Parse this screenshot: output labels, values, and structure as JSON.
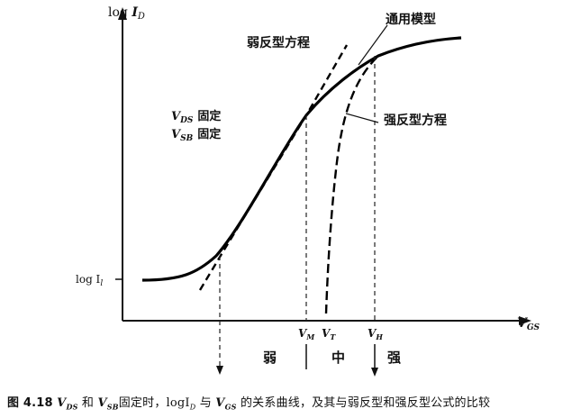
{
  "axes": {
    "y_label": "log I_D",
    "y_label_main": "log ",
    "y_label_sub": "D",
    "x_label_main": "V",
    "x_label_sub": "GS",
    "y_tick_label": "log I",
    "y_tick_sub": "l"
  },
  "annotations": {
    "general_model": "通用模型",
    "weak_inversion_eq": "弱反型方程",
    "strong_inversion_eq": "强反型方程",
    "vds_fixed": "固定",
    "vsb_fixed": "固定",
    "vds_sym": "V",
    "vds_sub": "DS",
    "vsb_sym": "V",
    "vsb_sub": "SB"
  },
  "x_ticks": [
    {
      "main": "V",
      "sub": "M"
    },
    {
      "main": "V",
      "sub": "T"
    },
    {
      "main": "V",
      "sub": "H"
    }
  ],
  "regions": {
    "weak": "弱",
    "moderate": "中",
    "strong": "强"
  },
  "caption": "图 4.18  V_DS 和 V_SB 固定时，logI_D 与 V_GS 的关系曲线，及其与弱反型和强反型公式的比较",
  "caption_parts": {
    "fig": "图 4.18",
    "p1": "V",
    "p1s": "DS",
    "p2": "和",
    "p3": "V",
    "p3s": "SB",
    "p4": "固定时，",
    "p5": "logI",
    "p5s": "D",
    "p6": "与",
    "p7": "V",
    "p7s": "GS",
    "p8": "的关系曲线，及其与弱反型和强反型公式的比较"
  }
}
